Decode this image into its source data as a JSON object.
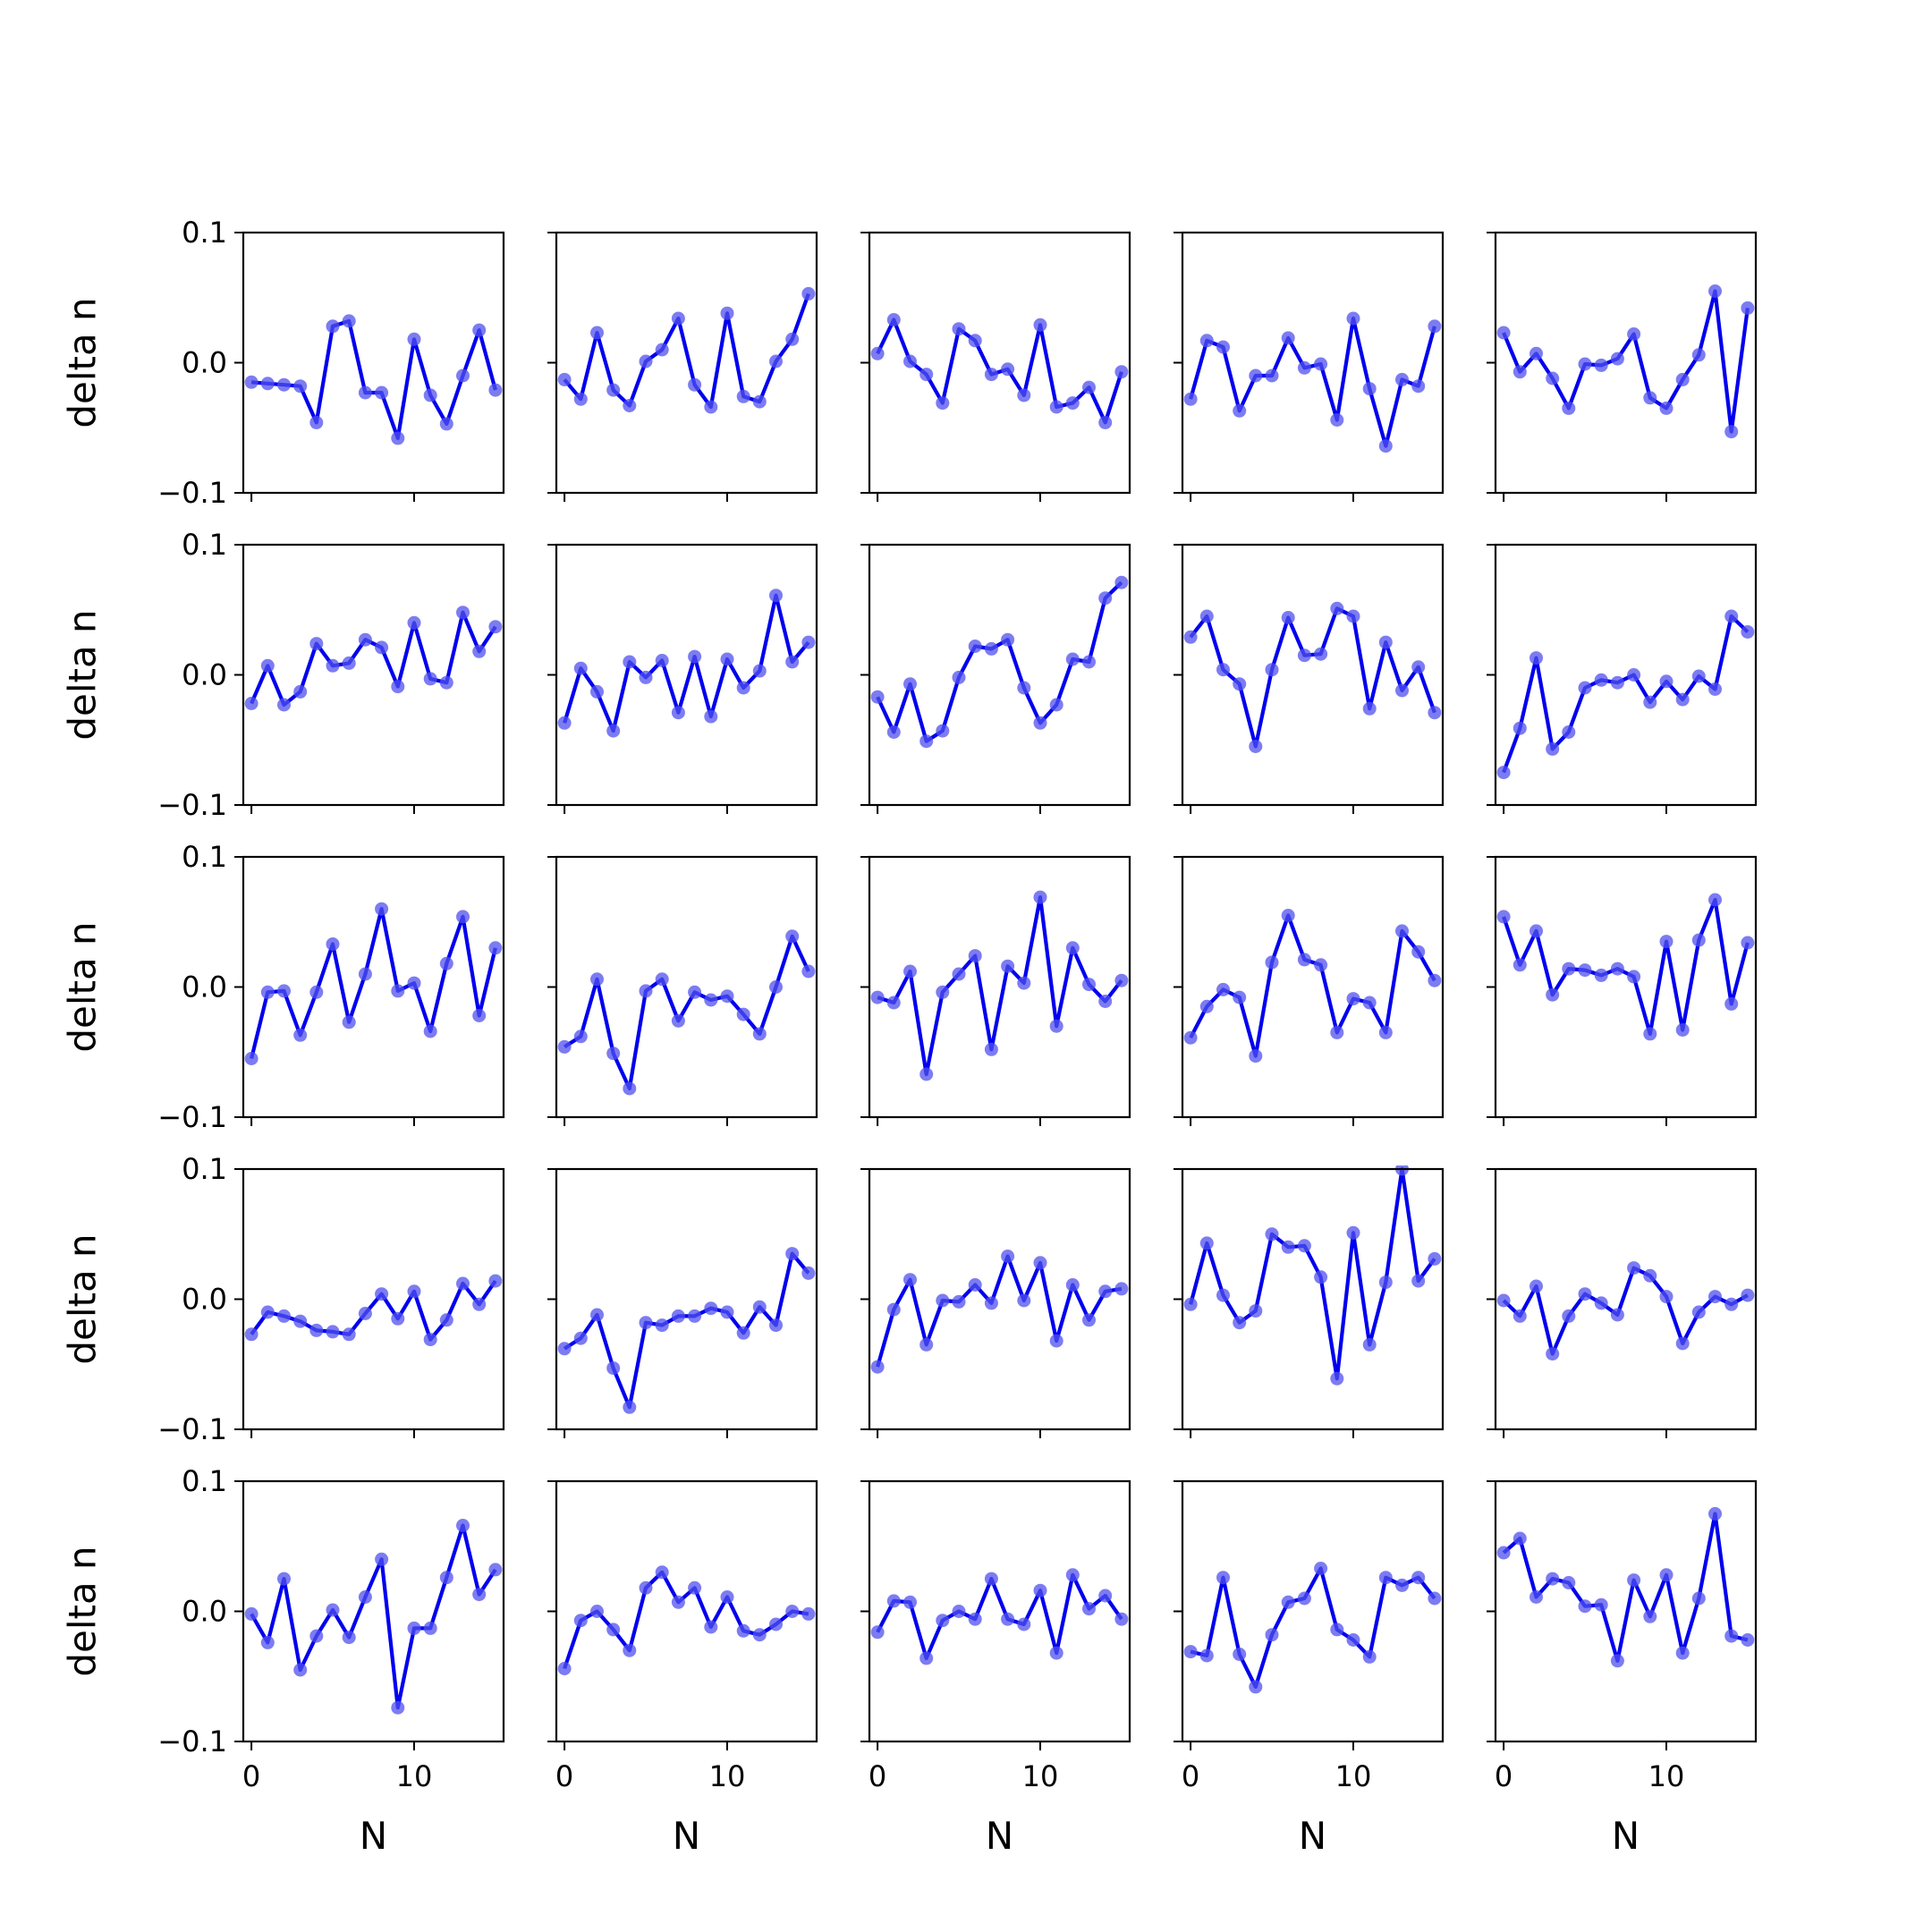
{
  "chart_data": {
    "type": "line",
    "layout": "5x5 grid of small multiples",
    "xlabel": "N",
    "ylabel": "delta n",
    "ylim": [
      -0.1,
      0.1
    ],
    "yticks": [
      -0.1,
      0.0,
      0.1
    ],
    "ytick_labels": [
      "−0.1",
      "0.0",
      "0.1"
    ],
    "xlim": [
      -0.5,
      15.5
    ],
    "xticks": [
      0,
      10
    ],
    "xtick_labels": [
      "0",
      "10"
    ],
    "x": [
      0,
      1,
      2,
      3,
      4,
      5,
      6,
      7,
      8,
      9,
      10,
      11,
      12,
      13,
      14,
      15
    ],
    "line_color": "#0000ee",
    "marker_color": "#5050ee",
    "grid": false,
    "panels": [
      [
        [
          -0.015,
          -0.016,
          -0.017,
          -0.018,
          -0.046,
          0.028,
          0.032,
          -0.023,
          -0.023,
          -0.058,
          0.018,
          -0.025,
          -0.047,
          -0.01,
          0.025,
          -0.021
        ],
        [
          -0.013,
          -0.028,
          0.023,
          -0.021,
          -0.033,
          0.001,
          0.01,
          0.034,
          -0.017,
          -0.034,
          0.038,
          -0.026,
          -0.03,
          0.001,
          0.018,
          0.053
        ],
        [
          0.007,
          0.033,
          0.001,
          -0.009,
          -0.031,
          0.026,
          0.017,
          -0.009,
          -0.005,
          -0.025,
          0.029,
          -0.034,
          -0.031,
          -0.019,
          -0.046,
          -0.007
        ],
        [
          -0.028,
          0.017,
          0.012,
          -0.037,
          -0.01,
          -0.01,
          0.019,
          -0.004,
          -0.001,
          -0.044,
          0.034,
          -0.02,
          -0.064,
          -0.013,
          -0.018,
          0.028
        ],
        [
          0.023,
          -0.007,
          0.007,
          -0.012,
          -0.035,
          -0.001,
          -0.002,
          0.003,
          0.022,
          -0.027,
          -0.035,
          -0.013,
          0.006,
          0.055,
          -0.053,
          0.042
        ]
      ],
      [
        [
          -0.022,
          0.007,
          -0.023,
          -0.013,
          0.024,
          0.007,
          0.009,
          0.027,
          0.021,
          -0.009,
          0.04,
          -0.003,
          -0.006,
          0.048,
          0.018,
          0.037
        ],
        [
          -0.037,
          0.005,
          -0.013,
          -0.043,
          0.01,
          -0.002,
          0.011,
          -0.029,
          0.014,
          -0.032,
          0.012,
          -0.01,
          0.003,
          0.061,
          0.01,
          0.025
        ],
        [
          -0.017,
          -0.044,
          -0.007,
          -0.051,
          -0.043,
          -0.002,
          0.022,
          0.02,
          0.027,
          -0.01,
          -0.037,
          -0.023,
          0.012,
          0.01,
          0.059,
          0.071
        ],
        [
          0.029,
          0.045,
          0.004,
          -0.007,
          -0.055,
          0.004,
          0.044,
          0.015,
          0.016,
          0.051,
          0.045,
          -0.026,
          0.025,
          -0.012,
          0.006,
          -0.029
        ],
        [
          -0.075,
          -0.041,
          0.013,
          -0.057,
          -0.044,
          -0.01,
          -0.004,
          -0.006,
          0.0,
          -0.021,
          -0.005,
          -0.019,
          -0.001,
          -0.011,
          0.045,
          0.033
        ]
      ],
      [
        [
          -0.055,
          -0.004,
          -0.003,
          -0.037,
          -0.004,
          0.033,
          -0.027,
          0.01,
          0.06,
          -0.003,
          0.003,
          -0.034,
          0.018,
          0.054,
          -0.022,
          0.03
        ],
        [
          -0.046,
          -0.038,
          0.006,
          -0.051,
          -0.078,
          -0.003,
          0.006,
          -0.026,
          -0.004,
          -0.01,
          -0.007,
          -0.021,
          -0.036,
          0.0,
          0.039,
          0.012
        ],
        [
          -0.008,
          -0.012,
          0.012,
          -0.067,
          -0.004,
          0.01,
          0.024,
          -0.048,
          0.016,
          0.003,
          0.069,
          -0.03,
          0.03,
          0.002,
          -0.011,
          0.005
        ],
        [
          -0.039,
          -0.015,
          -0.002,
          -0.008,
          -0.053,
          0.019,
          0.055,
          0.021,
          0.017,
          -0.035,
          -0.009,
          -0.012,
          -0.035,
          0.043,
          0.027,
          0.005
        ],
        [
          0.054,
          0.017,
          0.043,
          -0.006,
          0.014,
          0.013,
          0.009,
          0.014,
          0.008,
          -0.036,
          0.035,
          -0.033,
          0.036,
          0.067,
          -0.013,
          0.034
        ]
      ],
      [
        [
          -0.027,
          -0.01,
          -0.013,
          -0.017,
          -0.024,
          -0.025,
          -0.027,
          -0.011,
          0.004,
          -0.015,
          0.006,
          -0.031,
          -0.016,
          0.012,
          -0.004,
          0.014
        ],
        [
          -0.038,
          -0.03,
          -0.012,
          -0.053,
          -0.083,
          -0.018,
          -0.02,
          -0.013,
          -0.013,
          -0.007,
          -0.01,
          -0.026,
          -0.006,
          -0.02,
          0.035,
          0.02
        ],
        [
          -0.052,
          -0.008,
          0.015,
          -0.035,
          -0.001,
          -0.002,
          0.011,
          -0.003,
          0.033,
          -0.001,
          0.028,
          -0.032,
          0.011,
          -0.016,
          0.006,
          0.008
        ],
        [
          -0.004,
          0.043,
          0.003,
          -0.018,
          -0.009,
          0.05,
          0.04,
          0.041,
          0.017,
          -0.061,
          0.051,
          -0.035,
          0.013,
          0.1,
          0.014,
          0.031
        ],
        [
          -0.001,
          -0.013,
          0.01,
          -0.042,
          -0.013,
          0.004,
          -0.003,
          -0.012,
          0.024,
          0.018,
          0.002,
          -0.034,
          -0.01,
          0.002,
          -0.004,
          0.003
        ]
      ],
      [
        [
          -0.002,
          -0.024,
          0.025,
          -0.045,
          -0.019,
          0.001,
          -0.02,
          0.011,
          0.04,
          -0.074,
          -0.013,
          -0.013,
          0.026,
          0.066,
          0.013,
          0.032
        ],
        [
          -0.044,
          -0.007,
          0.0,
          -0.014,
          -0.03,
          0.018,
          0.03,
          0.007,
          0.018,
          -0.012,
          0.011,
          -0.015,
          -0.018,
          -0.01,
          0.0,
          -0.002
        ],
        [
          -0.016,
          0.008,
          0.007,
          -0.036,
          -0.007,
          0.0,
          -0.006,
          0.025,
          -0.006,
          -0.01,
          0.016,
          -0.032,
          0.028,
          0.002,
          0.012,
          -0.006
        ],
        [
          -0.031,
          -0.034,
          0.026,
          -0.033,
          -0.058,
          -0.018,
          0.007,
          0.01,
          0.033,
          -0.014,
          -0.022,
          -0.035,
          0.026,
          0.02,
          0.026,
          0.01
        ],
        [
          0.045,
          0.056,
          0.011,
          0.025,
          0.022,
          0.004,
          0.005,
          -0.038,
          0.024,
          -0.004,
          0.028,
          -0.032,
          0.01,
          0.075,
          -0.019,
          -0.022
        ]
      ]
    ]
  }
}
